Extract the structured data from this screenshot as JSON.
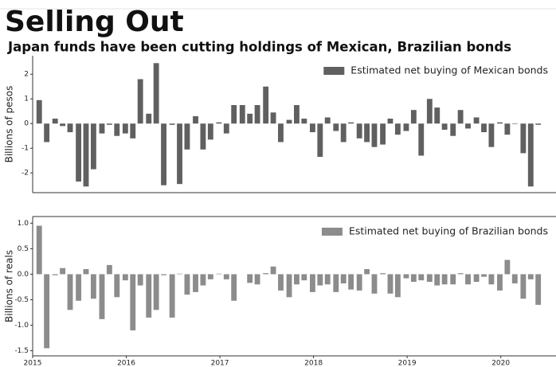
{
  "title": "Selling Out",
  "subtitle": "Japan funds have been cutting holdings of Mexican, Brazilian bonds",
  "chart_data": [
    {
      "type": "bar",
      "ylabel": "Billions of pesos",
      "legend": "upper right",
      "x": [
        2015.07,
        2015.15,
        2015.24,
        2015.32,
        2015.4,
        2015.49,
        2015.57,
        2015.65,
        2015.74,
        2015.82,
        2015.9,
        2015.99,
        2016.07,
        2016.15,
        2016.24,
        2016.32,
        2016.4,
        2016.49,
        2016.57,
        2016.65,
        2016.74,
        2016.82,
        2016.9,
        2016.99,
        2017.07,
        2017.15,
        2017.24,
        2017.32,
        2017.4,
        2017.49,
        2017.57,
        2017.65,
        2017.74,
        2017.82,
        2017.9,
        2017.99,
        2018.07,
        2018.15,
        2018.24,
        2018.32,
        2018.4,
        2018.49,
        2018.57,
        2018.65,
        2018.74,
        2018.82,
        2018.9,
        2018.99,
        2019.07,
        2019.15,
        2019.24,
        2019.32,
        2019.4,
        2019.49,
        2019.57,
        2019.65,
        2019.74,
        2019.82,
        2019.9,
        2019.99,
        2020.07,
        2020.15,
        2020.24,
        2020.32,
        2020.4
      ],
      "series": [
        {
          "name": "Estimated net buying of Mexican bonds",
          "color": "#606060",
          "values": [
            0.95,
            -0.75,
            0.2,
            -0.1,
            -0.35,
            -2.35,
            -2.55,
            -1.85,
            -0.4,
            -0.05,
            -0.5,
            -0.4,
            -0.6,
            1.8,
            0.4,
            2.45,
            -2.5,
            -0.05,
            -2.45,
            -1.05,
            0.3,
            -1.05,
            -0.65,
            0.05,
            -0.4,
            0.75,
            0.75,
            0.4,
            0.75,
            1.5,
            0.45,
            -0.75,
            0.15,
            0.75,
            0.2,
            -0.35,
            -1.35,
            0.25,
            -0.3,
            -0.75,
            0.05,
            -0.6,
            -0.75,
            -0.95,
            -0.85,
            0.2,
            -0.45,
            -0.3,
            0.55,
            -1.3,
            1.0,
            0.65,
            -0.25,
            -0.5,
            0.55,
            -0.2,
            0.25,
            -0.35,
            -0.95,
            0.05,
            -0.45,
            -0.02,
            -1.2,
            -2.55,
            -0.05
          ]
        }
      ],
      "xlim": [
        2015,
        2020.59
      ],
      "ylim": [
        -2.8,
        2.75
      ],
      "yticks": [
        -2,
        -1,
        0,
        1,
        2
      ]
    },
    {
      "type": "bar",
      "ylabel": "Billions of reals",
      "legend": "upper right",
      "x": [
        2015.07,
        2015.15,
        2015.24,
        2015.32,
        2015.4,
        2015.49,
        2015.57,
        2015.65,
        2015.74,
        2015.82,
        2015.9,
        2015.99,
        2016.07,
        2016.15,
        2016.24,
        2016.32,
        2016.4,
        2016.49,
        2016.57,
        2016.65,
        2016.74,
        2016.82,
        2016.9,
        2016.99,
        2017.07,
        2017.15,
        2017.24,
        2017.32,
        2017.4,
        2017.49,
        2017.57,
        2017.65,
        2017.74,
        2017.82,
        2017.9,
        2017.99,
        2018.07,
        2018.15,
        2018.24,
        2018.32,
        2018.4,
        2018.49,
        2018.57,
        2018.65,
        2018.74,
        2018.82,
        2018.9,
        2018.99,
        2019.07,
        2019.15,
        2019.24,
        2019.32,
        2019.4,
        2019.49,
        2019.57,
        2019.65,
        2019.74,
        2019.82,
        2019.9,
        2019.99,
        2020.07,
        2020.15,
        2020.24,
        2020.32,
        2020.4
      ],
      "series": [
        {
          "name": "Estimated net buying of Brazilian bonds",
          "color": "#8c8c8c",
          "values": [
            0.95,
            -1.45,
            -0.02,
            0.12,
            -0.7,
            -0.52,
            0.1,
            -0.48,
            -0.88,
            0.18,
            -0.45,
            -0.12,
            -1.1,
            -0.22,
            -0.85,
            -0.7,
            -0.02,
            -0.85,
            0.01,
            -0.4,
            -0.35,
            -0.22,
            -0.1,
            0.01,
            -0.1,
            -0.52,
            0.0,
            -0.17,
            -0.2,
            0.02,
            0.15,
            -0.32,
            -0.45,
            -0.2,
            -0.12,
            -0.35,
            -0.22,
            -0.2,
            -0.35,
            -0.18,
            -0.3,
            -0.32,
            0.1,
            -0.38,
            0.02,
            -0.38,
            -0.45,
            -0.08,
            -0.15,
            -0.12,
            -0.15,
            -0.22,
            -0.2,
            -0.2,
            0.02,
            -0.2,
            -0.15,
            -0.05,
            -0.2,
            -0.32,
            0.28,
            -0.18,
            -0.48,
            -0.1,
            -0.6
          ]
        }
      ],
      "xlim": [
        2015,
        2020.59
      ],
      "ylim": [
        -1.6,
        1.13
      ],
      "yticks": [
        {
          "value": -1.5,
          "label": "-1.5"
        },
        {
          "value": -1,
          "label": "-1.0"
        },
        {
          "value": -0.5,
          "label": "-0.5"
        },
        {
          "value": 0,
          "label": "0.0"
        },
        {
          "value": 0.5,
          "label": "0.5"
        },
        {
          "value": 1,
          "label": "1.0"
        }
      ],
      "xticks": [
        2015,
        2016,
        2017,
        2018,
        2019,
        2020
      ]
    }
  ]
}
